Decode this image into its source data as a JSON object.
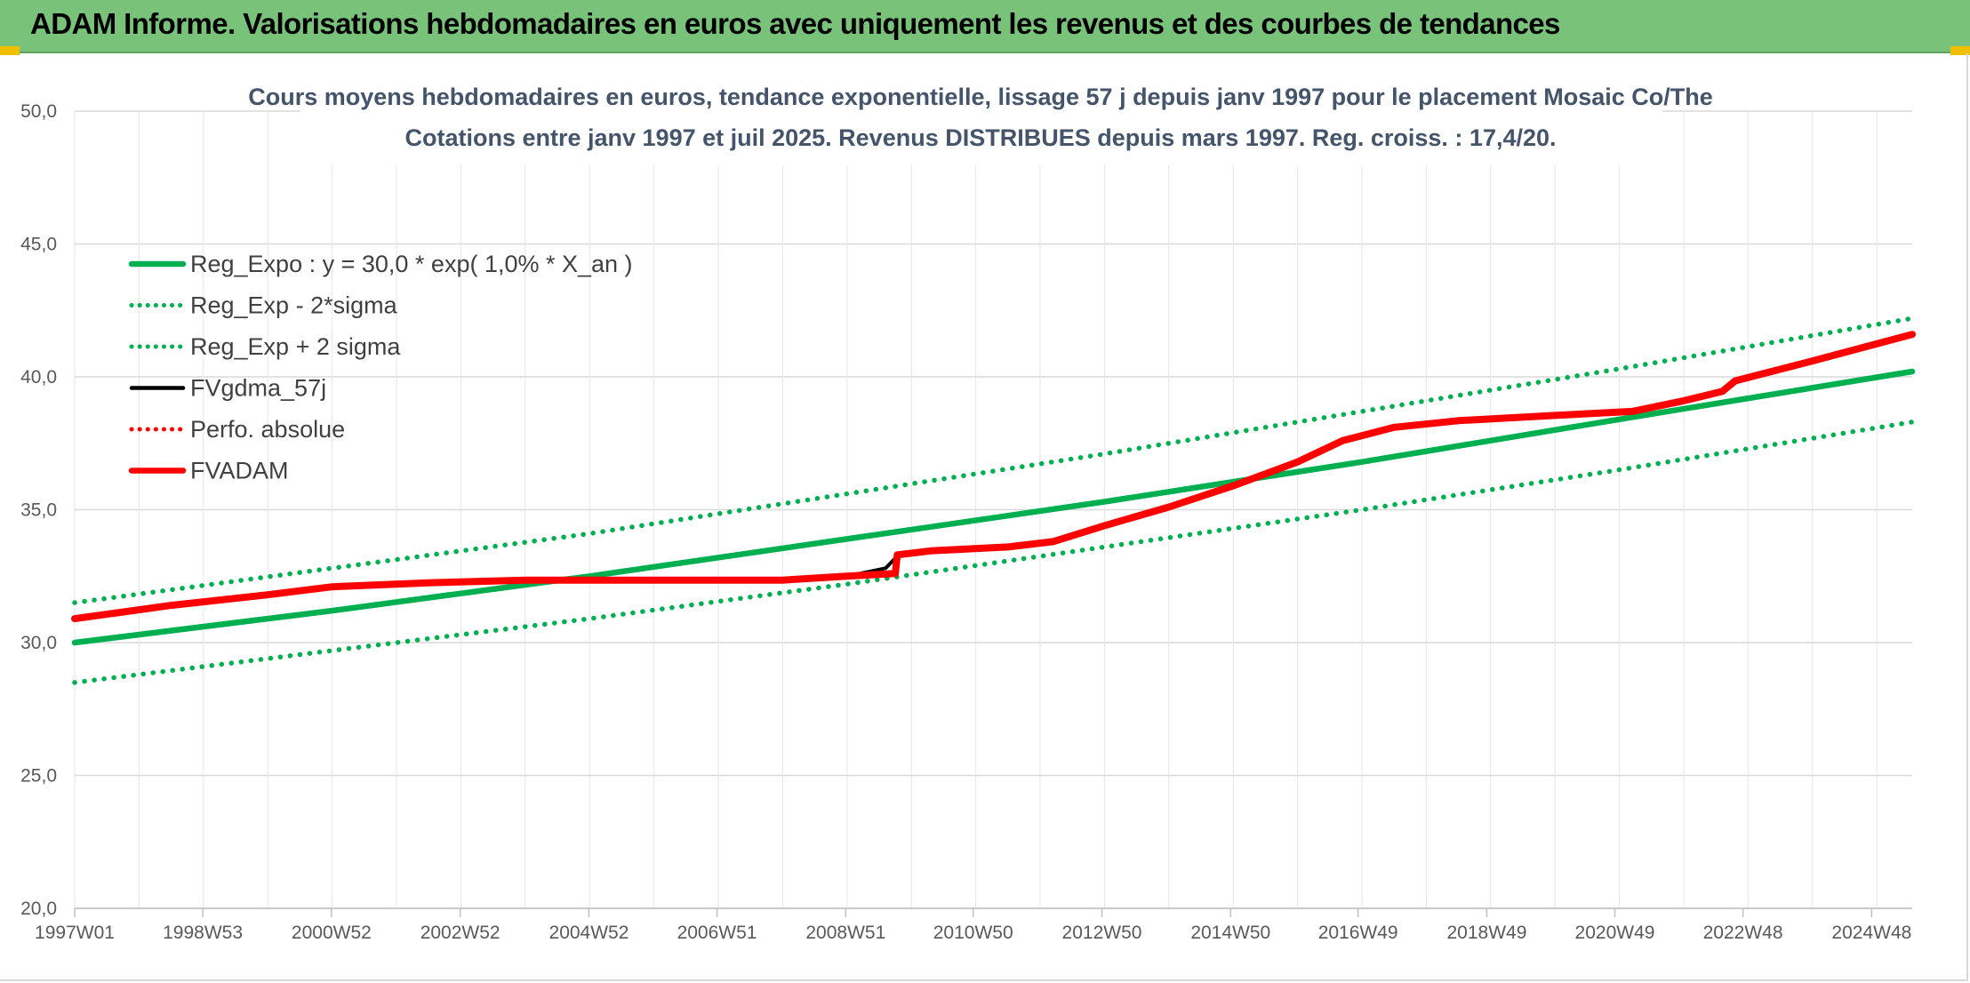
{
  "header": {
    "title": "ADAM Informe. Valorisations hebdomadaires en euros avec uniquement les revenus et des courbes de tendances"
  },
  "colors": {
    "header_bg": "#79c27a",
    "trend_green": "#00b050",
    "fvadam_red": "#ff0000",
    "fvgdma_black": "#000000",
    "grid": "#d9d9d9"
  },
  "chart_data": {
    "type": "line",
    "title_lines": [
      "Cours moyens hebdomadaires en euros, tendance exponentielle, lissage 57 j depuis janv 1997 pour le placement Mosaic Co/The",
      "Cotations entre janv 1997 et juil 2025. Revenus DISTRIBUES depuis mars 1997. Reg. croiss. : 17,4/20."
    ],
    "xlabel": "",
    "ylabel": "",
    "xlim": [
      1997.0,
      2025.55
    ],
    "ylim": [
      20,
      50
    ],
    "y_ticks": [
      20,
      25,
      30,
      35,
      40,
      45,
      50
    ],
    "y_tick_labels": [
      "20,0",
      "25,0",
      "30,0",
      "35,0",
      "40,0",
      "45,0",
      "50,0"
    ],
    "x_ticks": [
      1997.0,
      1998.99,
      2000.99,
      2002.99,
      2004.99,
      2006.98,
      2008.98,
      2010.96,
      2012.96,
      2014.96,
      2016.94,
      2018.94,
      2020.93,
      2022.92,
      2024.92
    ],
    "x_tick_labels": [
      "1997W01",
      "1998W53",
      "2000W52",
      "2002W52",
      "2004W52",
      "2006W51",
      "2008W51",
      "2010W50",
      "2012W50",
      "2014W50",
      "2016W49",
      "2018W49",
      "2020W49",
      "2022W48",
      "2024W48"
    ],
    "grid": true,
    "legend_position": "top-left",
    "series": [
      {
        "name": "Reg_Expo : y = 30,0 * exp( 1,0% *  X_an )",
        "style": "solid-thick",
        "color": "#00b050",
        "x": [
          1997.0,
          2001.0,
          2005.0,
          2009.0,
          2013.0,
          2017.0,
          2021.0,
          2025.55
        ],
        "y": [
          30.0,
          31.2,
          32.5,
          33.9,
          35.3,
          36.8,
          38.4,
          40.2
        ]
      },
      {
        "name": "Reg_Exp - 2*sigma",
        "style": "dotted",
        "color": "#00b050",
        "x": [
          1997.0,
          2001.0,
          2005.0,
          2009.0,
          2013.0,
          2017.0,
          2021.0,
          2025.55
        ],
        "y": [
          28.5,
          29.7,
          30.9,
          32.2,
          33.6,
          35.0,
          36.5,
          38.3
        ]
      },
      {
        "name": "Reg_Exp + 2 sigma",
        "style": "dotted",
        "color": "#00b050",
        "x": [
          1997.0,
          2001.0,
          2005.0,
          2009.0,
          2013.0,
          2017.0,
          2021.0,
          2025.55
        ],
        "y": [
          31.5,
          32.8,
          34.1,
          35.6,
          37.1,
          38.7,
          40.3,
          42.2
        ]
      },
      {
        "name": "FVgdma_57j",
        "style": "solid",
        "color": "#000000",
        "x": [
          1997.0,
          1998.5,
          2000.0,
          2001.0,
          2002.5,
          2004.0,
          2008.0,
          2009.0,
          2009.6,
          2009.8,
          2010.3,
          2011.5,
          2012.2,
          2013.0,
          2014.0,
          2015.0,
          2016.0,
          2016.7,
          2017.5,
          2018.5,
          2020.0,
          2021.2,
          2022.0,
          2022.6,
          2022.8,
          2024.0,
          2025.55
        ],
        "y": [
          30.9,
          31.4,
          31.8,
          32.1,
          32.25,
          32.35,
          32.35,
          32.5,
          32.8,
          33.3,
          33.45,
          33.6,
          33.8,
          34.4,
          35.1,
          35.9,
          36.8,
          37.6,
          38.1,
          38.35,
          38.55,
          38.7,
          39.1,
          39.45,
          39.85,
          40.6,
          41.6
        ]
      },
      {
        "name": "Perfo. absolue",
        "style": "dotted",
        "color": "#ff0000",
        "x": [],
        "y": []
      },
      {
        "name": "FVADAM",
        "style": "solid-thick",
        "color": "#ff0000",
        "x": [
          1997.0,
          1998.5,
          2000.0,
          2001.0,
          2002.5,
          2004.0,
          2008.0,
          2009.0,
          2009.75,
          2009.78,
          2010.3,
          2011.5,
          2012.2,
          2013.0,
          2014.0,
          2015.0,
          2016.0,
          2016.7,
          2017.5,
          2018.5,
          2020.0,
          2021.2,
          2022.0,
          2022.6,
          2022.8,
          2024.0,
          2025.55
        ],
        "y": [
          30.9,
          31.4,
          31.8,
          32.1,
          32.25,
          32.35,
          32.35,
          32.5,
          32.6,
          33.3,
          33.45,
          33.6,
          33.8,
          34.4,
          35.1,
          35.9,
          36.8,
          37.6,
          38.1,
          38.35,
          38.55,
          38.7,
          39.1,
          39.45,
          39.85,
          40.6,
          41.6
        ]
      }
    ]
  }
}
